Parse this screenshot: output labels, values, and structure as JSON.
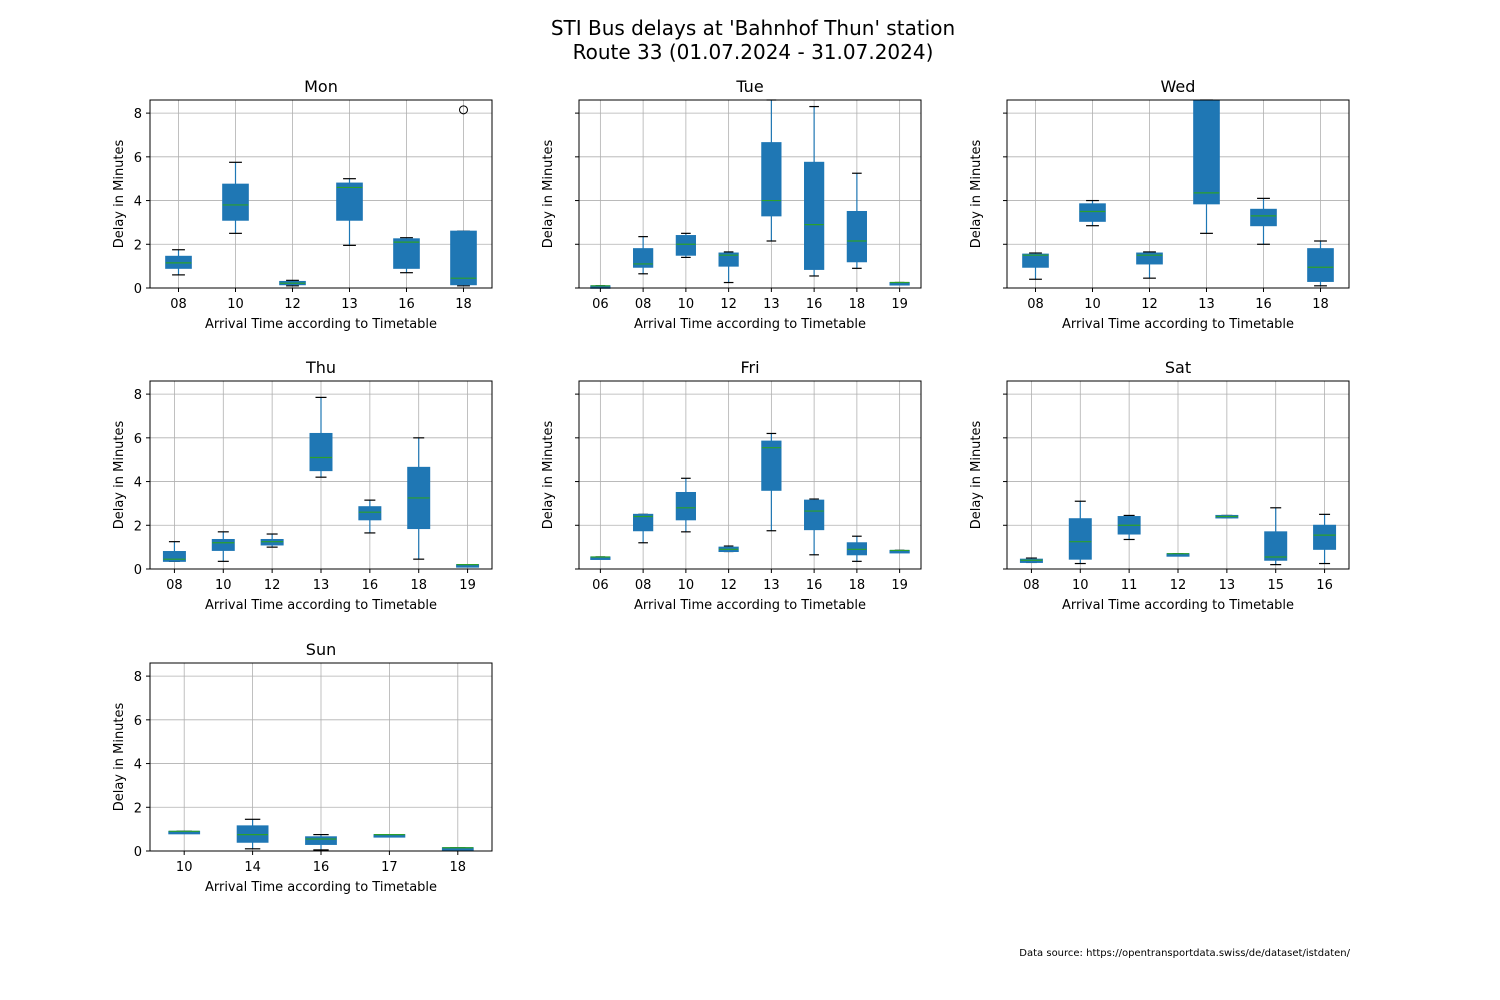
{
  "figure": {
    "title_line1": "STI Bus delays at 'Bahnhof Thun' station",
    "title_line2": "Route 33 (01.07.2024 - 31.07.2024)",
    "source_note": "Data source: https://opentransportdata.swiss/de/dataset/istdaten/"
  },
  "colors": {
    "box_fill": "#1f77b4",
    "median": "#2ca02c",
    "grid": "#b0b0b0",
    "whisker": "#000000",
    "flier_edge": "#000000"
  },
  "chart_data": [
    {
      "type": "box",
      "title": "Mon",
      "xlabel": "Arrival Time according to Timetable",
      "ylabel": "Delay in Minutes",
      "ylim": [
        0,
        8.6
      ],
      "yticks": [
        0,
        2,
        4,
        6,
        8
      ],
      "show_ytick_labels": true,
      "grid": true,
      "categories": [
        "08",
        "10",
        "12",
        "13",
        "16",
        "18"
      ],
      "boxes": [
        {
          "whislo": 0.6,
          "q1": 0.9,
          "med": 1.15,
          "q3": 1.45,
          "whishi": 1.75,
          "fliers": []
        },
        {
          "whislo": 2.5,
          "q1": 3.1,
          "med": 3.8,
          "q3": 4.75,
          "whishi": 5.75,
          "fliers": []
        },
        {
          "whislo": 0.1,
          "q1": 0.15,
          "med": 0.22,
          "q3": 0.3,
          "whishi": 0.35,
          "fliers": []
        },
        {
          "whislo": 1.95,
          "q1": 3.1,
          "med": 4.6,
          "q3": 4.8,
          "whishi": 5.0,
          "fliers": []
        },
        {
          "whislo": 0.7,
          "q1": 0.9,
          "med": 2.1,
          "q3": 2.25,
          "whishi": 2.3,
          "fliers": []
        },
        {
          "whislo": 0.1,
          "q1": 0.15,
          "med": 0.45,
          "q3": 2.6,
          "whishi": 2.6,
          "fliers": [
            8.15
          ]
        }
      ]
    },
    {
      "type": "box",
      "title": "Tue",
      "xlabel": "Arrival Time according to Timetable",
      "ylabel": "Delay in Minutes",
      "ylim": [
        0,
        8.6
      ],
      "yticks": [
        0,
        2,
        4,
        6,
        8
      ],
      "show_ytick_labels": false,
      "grid": true,
      "categories": [
        "06",
        "08",
        "10",
        "12",
        "13",
        "16",
        "18",
        "19"
      ],
      "boxes": [
        {
          "whislo": 0.1,
          "q1": 0.1,
          "med": 0.1,
          "q3": 0.1,
          "whishi": 0.1,
          "fliers": []
        },
        {
          "whislo": 0.65,
          "q1": 0.95,
          "med": 1.1,
          "q3": 1.8,
          "whishi": 2.35,
          "fliers": []
        },
        {
          "whislo": 1.4,
          "q1": 1.5,
          "med": 2.0,
          "q3": 2.4,
          "whishi": 2.5,
          "fliers": []
        },
        {
          "whislo": 0.25,
          "q1": 1.0,
          "med": 1.5,
          "q3": 1.6,
          "whishi": 1.65,
          "fliers": []
        },
        {
          "whislo": 2.15,
          "q1": 3.3,
          "med": 4.0,
          "q3": 6.65,
          "whishi": 8.6,
          "fliers": []
        },
        {
          "whislo": 0.55,
          "q1": 0.85,
          "med": 2.9,
          "q3": 5.75,
          "whishi": 8.3,
          "fliers": []
        },
        {
          "whislo": 0.9,
          "q1": 1.2,
          "med": 2.15,
          "q3": 3.5,
          "whishi": 5.25,
          "fliers": []
        },
        {
          "whislo": 0.25,
          "q1": 0.25,
          "med": 0.25,
          "q3": 0.25,
          "whishi": 0.25,
          "fliers": []
        }
      ]
    },
    {
      "type": "box",
      "title": "Wed",
      "xlabel": "Arrival Time according to Timetable",
      "ylabel": "Delay in Minutes",
      "ylim": [
        0,
        8.6
      ],
      "yticks": [
        0,
        2,
        4,
        6,
        8
      ],
      "show_ytick_labels": false,
      "grid": true,
      "categories": [
        "08",
        "10",
        "12",
        "13",
        "16",
        "18"
      ],
      "boxes": [
        {
          "whislo": 0.4,
          "q1": 0.95,
          "med": 1.5,
          "q3": 1.55,
          "whishi": 1.6,
          "fliers": []
        },
        {
          "whislo": 2.85,
          "q1": 3.05,
          "med": 3.5,
          "q3": 3.85,
          "whishi": 4.0,
          "fliers": []
        },
        {
          "whislo": 0.45,
          "q1": 1.1,
          "med": 1.5,
          "q3": 1.6,
          "whishi": 1.65,
          "fliers": []
        },
        {
          "whislo": 2.5,
          "q1": 3.85,
          "med": 4.35,
          "q3": 8.6,
          "whishi": 8.6,
          "fliers": []
        },
        {
          "whislo": 2.0,
          "q1": 2.85,
          "med": 3.3,
          "q3": 3.6,
          "whishi": 4.1,
          "fliers": []
        },
        {
          "whislo": 0.1,
          "q1": 0.3,
          "med": 0.95,
          "q3": 1.8,
          "whishi": 2.15,
          "fliers": []
        }
      ]
    },
    {
      "type": "box",
      "title": "Thu",
      "xlabel": "Arrival Time according to Timetable",
      "ylabel": "Delay in Minutes",
      "ylim": [
        0,
        8.6
      ],
      "yticks": [
        0,
        2,
        4,
        6,
        8
      ],
      "show_ytick_labels": true,
      "grid": true,
      "categories": [
        "08",
        "10",
        "12",
        "13",
        "16",
        "18",
        "19"
      ],
      "boxes": [
        {
          "whislo": 0.35,
          "q1": 0.35,
          "med": 0.45,
          "q3": 0.8,
          "whishi": 1.25,
          "fliers": []
        },
        {
          "whislo": 0.35,
          "q1": 0.85,
          "med": 1.2,
          "q3": 1.35,
          "whishi": 1.7,
          "fliers": []
        },
        {
          "whislo": 1.0,
          "q1": 1.1,
          "med": 1.25,
          "q3": 1.35,
          "whishi": 1.6,
          "fliers": []
        },
        {
          "whislo": 4.2,
          "q1": 4.5,
          "med": 5.1,
          "q3": 6.2,
          "whishi": 7.85,
          "fliers": []
        },
        {
          "whislo": 1.65,
          "q1": 2.25,
          "med": 2.6,
          "q3": 2.85,
          "whishi": 3.15,
          "fliers": []
        },
        {
          "whislo": 0.45,
          "q1": 1.85,
          "med": 3.25,
          "q3": 4.65,
          "whishi": 6.0,
          "fliers": []
        },
        {
          "whislo": 0.2,
          "q1": 0.2,
          "med": 0.2,
          "q3": 0.2,
          "whishi": 0.2,
          "fliers": []
        }
      ]
    },
    {
      "type": "box",
      "title": "Fri",
      "xlabel": "Arrival Time according to Timetable",
      "ylabel": "Delay in Minutes",
      "ylim": [
        0,
        8.6
      ],
      "yticks": [
        0,
        2,
        4,
        6,
        8
      ],
      "show_ytick_labels": false,
      "grid": true,
      "categories": [
        "06",
        "08",
        "10",
        "12",
        "13",
        "16",
        "18",
        "19"
      ],
      "boxes": [
        {
          "whislo": 0.55,
          "q1": 0.55,
          "med": 0.55,
          "q3": 0.55,
          "whishi": 0.55,
          "fliers": []
        },
        {
          "whislo": 1.2,
          "q1": 1.75,
          "med": 2.4,
          "q3": 2.5,
          "whishi": 2.5,
          "fliers": []
        },
        {
          "whislo": 1.7,
          "q1": 2.25,
          "med": 2.8,
          "q3": 3.5,
          "whishi": 4.15,
          "fliers": []
        },
        {
          "whislo": 0.8,
          "q1": 0.8,
          "med": 0.9,
          "q3": 1.0,
          "whishi": 1.05,
          "fliers": []
        },
        {
          "whislo": 1.75,
          "q1": 3.6,
          "med": 5.55,
          "q3": 5.85,
          "whishi": 6.2,
          "fliers": []
        },
        {
          "whislo": 0.65,
          "q1": 1.8,
          "med": 2.65,
          "q3": 3.15,
          "whishi": 3.2,
          "fliers": []
        },
        {
          "whislo": 0.35,
          "q1": 0.65,
          "med": 0.9,
          "q3": 1.2,
          "whishi": 1.5,
          "fliers": []
        },
        {
          "whislo": 0.85,
          "q1": 0.85,
          "med": 0.85,
          "q3": 0.85,
          "whishi": 0.85,
          "fliers": []
        }
      ]
    },
    {
      "type": "box",
      "title": "Sat",
      "xlabel": "Arrival Time according to Timetable",
      "ylabel": "Delay in Minutes",
      "ylim": [
        0,
        8.6
      ],
      "yticks": [
        0,
        2,
        4,
        6,
        8
      ],
      "show_ytick_labels": false,
      "grid": true,
      "categories": [
        "08",
        "10",
        "11",
        "12",
        "13",
        "15",
        "16"
      ],
      "boxes": [
        {
          "whislo": 0.3,
          "q1": 0.3,
          "med": 0.4,
          "q3": 0.45,
          "whishi": 0.5,
          "fliers": []
        },
        {
          "whislo": 0.25,
          "q1": 0.45,
          "med": 1.25,
          "q3": 2.3,
          "whishi": 3.1,
          "fliers": []
        },
        {
          "whislo": 1.35,
          "q1": 1.6,
          "med": 2.0,
          "q3": 2.4,
          "whishi": 2.45,
          "fliers": []
        },
        {
          "whislo": 0.7,
          "q1": 0.7,
          "med": 0.7,
          "q3": 0.7,
          "whishi": 0.7,
          "fliers": []
        },
        {
          "whislo": 2.35,
          "q1": 2.35,
          "med": 2.4,
          "q3": 2.45,
          "whishi": 2.45,
          "fliers": []
        },
        {
          "whislo": 0.2,
          "q1": 0.4,
          "med": 0.55,
          "q3": 1.7,
          "whishi": 2.8,
          "fliers": []
        },
        {
          "whislo": 0.25,
          "q1": 0.9,
          "med": 1.55,
          "q3": 2.0,
          "whishi": 2.5,
          "fliers": []
        }
      ]
    },
    {
      "type": "box",
      "title": "Sun",
      "xlabel": "Arrival Time according to Timetable",
      "ylabel": "Delay in Minutes",
      "ylim": [
        0,
        8.6
      ],
      "yticks": [
        0,
        2,
        4,
        6,
        8
      ],
      "show_ytick_labels": true,
      "grid": true,
      "categories": [
        "10",
        "14",
        "16",
        "17",
        "18"
      ],
      "boxes": [
        {
          "whislo": 0.9,
          "q1": 0.9,
          "med": 0.9,
          "q3": 0.9,
          "whishi": 0.9,
          "fliers": []
        },
        {
          "whislo": 0.1,
          "q1": 0.4,
          "med": 0.75,
          "q3": 1.15,
          "whishi": 1.45,
          "fliers": []
        },
        {
          "whislo": 0.05,
          "q1": 0.3,
          "med": 0.55,
          "q3": 0.65,
          "whishi": 0.75,
          "fliers": []
        },
        {
          "whislo": 0.75,
          "q1": 0.75,
          "med": 0.75,
          "q3": 0.75,
          "whishi": 0.75,
          "fliers": []
        },
        {
          "whislo": 0.15,
          "q1": 0.15,
          "med": 0.15,
          "q3": 0.15,
          "whishi": 0.15,
          "fliers": []
        }
      ]
    }
  ]
}
